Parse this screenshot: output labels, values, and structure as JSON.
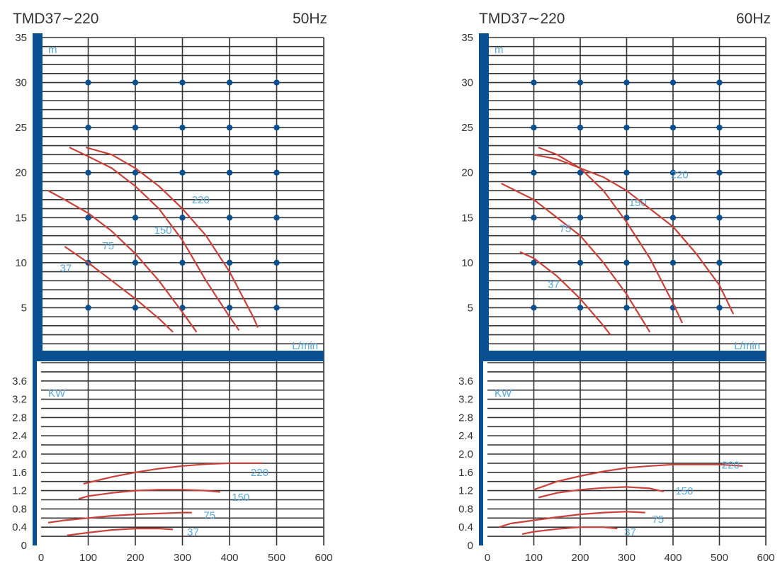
{
  "colors": {
    "axis": "#0a4f8f",
    "grid": "#333333",
    "dot": "#0a4f8f",
    "curve": "#c8423b",
    "label": "#5aa8d8",
    "text": "#333333"
  },
  "chart_data": [
    {
      "type": "line",
      "title": "TMD37∼220",
      "frequency": "50Hz",
      "x_unit": "L/min",
      "x_ticks": [
        "0",
        "100",
        "200",
        "300",
        "400",
        "500",
        "600"
      ],
      "xlim": [
        0,
        600
      ],
      "grid": true,
      "head": {
        "unit": "m",
        "ylim": [
          0,
          35
        ],
        "y_ticks": [
          "5",
          "10",
          "15",
          "20",
          "25",
          "30",
          "35"
        ],
        "series": [
          {
            "name": "37",
            "x": [
              50,
              100,
              150,
              200,
              250,
              280
            ],
            "y": [
              11.8,
              10,
              8,
              6,
              3.8,
              2.3
            ]
          },
          {
            "name": "75",
            "x": [
              15,
              50,
              100,
              150,
              200,
              250,
              300,
              330
            ],
            "y": [
              18,
              17,
              15.5,
              13.5,
              11,
              8,
              4.5,
              2.3
            ]
          },
          {
            "name": "150",
            "x": [
              60,
              100,
              150,
              200,
              250,
              300,
              350,
              400,
              420
            ],
            "y": [
              22.8,
              21.8,
              20.5,
              18.5,
              16,
              12.5,
              8,
              4,
              2.5
            ]
          },
          {
            "name": "220",
            "x": [
              95,
              150,
              200,
              250,
              300,
              350,
              400,
              450,
              460
            ],
            "y": [
              22.8,
              22,
              20.5,
              18.5,
              16,
              13,
              9,
              4,
              2.8
            ]
          }
        ]
      },
      "power": {
        "unit": "KW",
        "ylim": [
          0,
          4.0
        ],
        "y_ticks": [
          "0",
          "0.4",
          "0.8",
          "1.2",
          "1.6",
          "2.0",
          "2.4",
          "2.8",
          "3.2",
          "3.6"
        ],
        "series": [
          {
            "name": "37",
            "x": [
              55,
              100,
              150,
              200,
              250,
              280
            ],
            "y": [
              0.22,
              0.28,
              0.34,
              0.37,
              0.37,
              0.35
            ]
          },
          {
            "name": "75",
            "x": [
              15,
              50,
              100,
              150,
              200,
              250,
              300,
              320
            ],
            "y": [
              0.5,
              0.55,
              0.6,
              0.65,
              0.68,
              0.7,
              0.72,
              0.72
            ]
          },
          {
            "name": "150",
            "x": [
              80,
              100,
              150,
              200,
              250,
              300,
              350,
              380
            ],
            "y": [
              1.02,
              1.08,
              1.15,
              1.2,
              1.22,
              1.22,
              1.2,
              1.17
            ]
          },
          {
            "name": "220",
            "x": [
              90,
              150,
              200,
              250,
              300,
              350,
              400,
              450,
              470
            ],
            "y": [
              1.35,
              1.5,
              1.6,
              1.68,
              1.74,
              1.78,
              1.8,
              1.8,
              1.8
            ]
          }
        ]
      }
    },
    {
      "type": "line",
      "title": "TMD37∼220",
      "frequency": "60Hz",
      "x_unit": "L/min",
      "x_ticks": [
        "0",
        "100",
        "200",
        "300",
        "400",
        "500",
        "600"
      ],
      "xlim": [
        0,
        600
      ],
      "grid": true,
      "head": {
        "unit": "m",
        "ylim": [
          0,
          35
        ],
        "y_ticks": [
          "5",
          "10",
          "15",
          "20",
          "25",
          "30",
          "35"
        ],
        "series": [
          {
            "name": "37",
            "x": [
              70,
              100,
              150,
              200,
              250,
              265
            ],
            "y": [
              11.2,
              10.5,
              8.5,
              6,
              3,
              2
            ]
          },
          {
            "name": "75",
            "x": [
              30,
              100,
              150,
              200,
              250,
              300,
              350
            ],
            "y": [
              18.8,
              17,
              15,
              13,
              10,
              6.5,
              2.3
            ]
          },
          {
            "name": "150",
            "x": [
              110,
              150,
              200,
              250,
              300,
              350,
              400,
              420
            ],
            "y": [
              22.8,
              22,
              20.5,
              18,
              14.5,
              10.5,
              5.5,
              3.3
            ]
          },
          {
            "name": "220",
            "x": [
              100,
              150,
              200,
              250,
              300,
              350,
              400,
              450,
              500,
              530
            ],
            "y": [
              22,
              21.5,
              20.5,
              19.5,
              18,
              16,
              14,
              11,
              7.5,
              4.3
            ]
          }
        ]
      },
      "power": {
        "unit": "KW",
        "ylim": [
          0,
          4.0
        ],
        "y_ticks": [
          "0",
          "0.4",
          "0.8",
          "1.2",
          "1.6",
          "2.0",
          "2.4",
          "2.8",
          "3.2",
          "3.6"
        ],
        "series": [
          {
            "name": "37",
            "x": [
              75,
              100,
              150,
              200,
              250,
              280
            ],
            "y": [
              0.25,
              0.3,
              0.36,
              0.4,
              0.4,
              0.37
            ]
          },
          {
            "name": "75",
            "x": [
              25,
              50,
              100,
              150,
              200,
              250,
              300,
              340
            ],
            "y": [
              0.4,
              0.48,
              0.55,
              0.62,
              0.68,
              0.72,
              0.74,
              0.72
            ]
          },
          {
            "name": "150",
            "x": [
              110,
              150,
              200,
              250,
              300,
              350,
              380
            ],
            "y": [
              1.05,
              1.15,
              1.22,
              1.26,
              1.28,
              1.25,
              1.18
            ]
          },
          {
            "name": "220",
            "x": [
              100,
              150,
              200,
              250,
              300,
              350,
              400,
              450,
              500,
              550
            ],
            "y": [
              1.22,
              1.4,
              1.52,
              1.62,
              1.7,
              1.74,
              1.77,
              1.77,
              1.77,
              1.74
            ]
          }
        ]
      }
    }
  ]
}
